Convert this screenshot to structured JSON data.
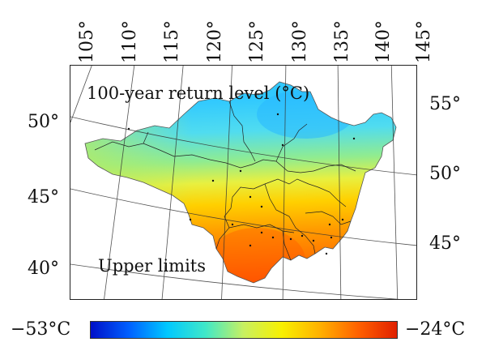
{
  "map": {
    "title": "100-year return level (°C)",
    "subtitle": "Upper limits",
    "top_longitudes": [
      "105°",
      "110°",
      "115°",
      "120°",
      "125°",
      "130°",
      "135°",
      "140°",
      "145°"
    ],
    "left_latitudes": [
      "50°",
      "45°",
      "40°"
    ],
    "right_latitudes": [
      "55°",
      "50°",
      "45°"
    ]
  },
  "colorbar": {
    "min_label": "−53°C",
    "max_label": "−24°C",
    "colors": [
      "#0010c8",
      "#0060ff",
      "#00c8ff",
      "#40e8c8",
      "#c8f060",
      "#f8f000",
      "#ffb000",
      "#ff6000",
      "#e02000"
    ]
  }
}
